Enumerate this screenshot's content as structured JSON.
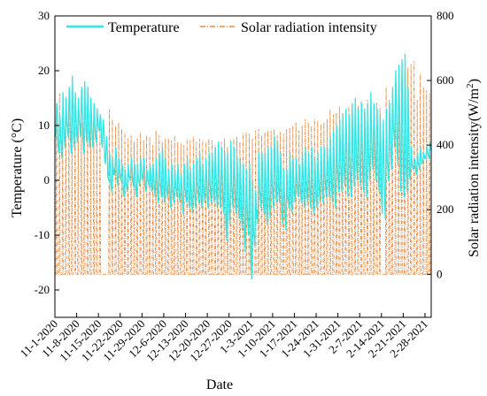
{
  "chart_data": {
    "type": "line",
    "xlabel": "Date",
    "ylabel_left": "Temperature (",
    "ylabel_left_unit": "°C)",
    "ylabel_right": "Solar radiation intensity(W/m",
    "ylabel_right_sup": "2",
    "ylabel_right_close": ")",
    "ylim_left": [
      -25,
      30
    ],
    "ylim_right": [
      -133.3,
      800
    ],
    "yticks_left": [
      -20,
      -10,
      0,
      10,
      20,
      30
    ],
    "yticks_right": [
      0,
      200,
      400,
      600,
      800
    ],
    "x_start": "2020-11-01",
    "x_end": "2021-03-02",
    "date_ticks": [
      "11-1-2020",
      "11-8-2020",
      "11-15-2020",
      "11-22-2020",
      "11-29-2020",
      "12-6-2020",
      "12-13-2020",
      "12-20-2020",
      "12-27-2020",
      "1-3-2021",
      "1-10-2021",
      "1-17-2021",
      "1-24-2021",
      "1-31-2021",
      "2-7-2021",
      "2-14-2021",
      "2-21-2021",
      "2-28-2021"
    ],
    "legend_position": "top",
    "series": [
      {
        "name": "Temperature",
        "color": "#33E6E6",
        "style": "solid",
        "axis": "left",
        "daily_min": [
          8,
          5,
          4,
          6,
          8,
          5,
          6,
          7,
          8,
          5,
          7,
          6,
          6,
          7,
          9,
          6,
          3,
          0,
          -2,
          1,
          -1,
          0,
          -3,
          -2,
          0,
          -1,
          -3,
          -1,
          0,
          -2,
          -1,
          -2,
          -3,
          -4,
          -3,
          -4,
          -3,
          -5,
          -4,
          -3,
          -4,
          -6,
          -4,
          -5,
          -6,
          -5,
          -4,
          -5,
          -4,
          -5,
          -4,
          -4,
          -5,
          -5,
          -6,
          -11,
          -8,
          -5,
          -6,
          -7,
          -9,
          -13,
          -10,
          -18,
          -12,
          -8,
          -5,
          -6,
          -8,
          -7,
          -5,
          -4,
          -4,
          -8,
          -9,
          -5,
          -6,
          -4,
          -3,
          -4,
          -5,
          -4,
          -5,
          -6,
          -5,
          -4,
          -4,
          -3,
          -3,
          -4,
          -5,
          -2,
          -2,
          -1,
          -3,
          -3,
          -1,
          0,
          -1,
          -2,
          -3,
          0,
          2,
          0,
          -2,
          -6,
          -7,
          0,
          2,
          6,
          3,
          -2,
          -3,
          -2,
          0,
          2,
          1,
          2,
          3,
          4,
          4
        ],
        "daily_max": [
          14,
          12,
          16,
          15,
          17,
          19,
          16,
          15,
          17,
          18,
          17,
          15,
          14,
          13,
          12,
          11,
          8,
          5,
          4,
          6,
          4,
          3,
          2,
          3,
          4,
          3,
          3,
          4,
          4,
          2,
          3,
          3,
          4,
          5,
          6,
          4,
          2,
          3,
          2,
          3,
          1,
          3,
          4,
          2,
          3,
          4,
          5,
          3,
          4,
          5,
          5,
          6,
          7,
          6,
          5,
          5,
          7,
          6,
          4,
          4,
          3,
          2,
          3,
          0,
          -2,
          5,
          5,
          5,
          6,
          6,
          8,
          7,
          5,
          2,
          2,
          5,
          4,
          4,
          3,
          5,
          6,
          5,
          6,
          4,
          5,
          6,
          6,
          6,
          8,
          9,
          10,
          11,
          12,
          13,
          12,
          14,
          15,
          13,
          14,
          13,
          14,
          16,
          14,
          13,
          12,
          11,
          13,
          14,
          17,
          20,
          21,
          22,
          23,
          17,
          6,
          4,
          5,
          6,
          5,
          6,
          7
        ]
      },
      {
        "name": "Solar radiation intensity",
        "color": "#E88A45",
        "style": "dash-dot",
        "axis": "right",
        "daily_peak": [
          530,
          560,
          480,
          550,
          520,
          490,
          540,
          510,
          470,
          530,
          520,
          500,
          480,
          490,
          470,
          0,
          0,
          510,
          480,
          460,
          470,
          450,
          440,
          420,
          430,
          410,
          420,
          440,
          415,
          430,
          425,
          400,
          445,
          430,
          410,
          420,
          420,
          415,
          430,
          410,
          405,
          400,
          420,
          415,
          425,
          410,
          420,
          415,
          410,
          420,
          415,
          400,
          405,
          410,
          420,
          395,
          415,
          420,
          425,
          410,
          435,
          440,
          435,
          420,
          445,
          450,
          430,
          440,
          445,
          445,
          450,
          430,
          440,
          435,
          450,
          455,
          460,
          470,
          445,
          460,
          480,
          470,
          460,
          480,
          475,
          465,
          470,
          480,
          510,
          495,
          500,
          520,
          500,
          505,
          520,
          510,
          530,
          520,
          540,
          500,
          540,
          490,
          520,
          530,
          515,
          0,
          580,
          540,
          560,
          590,
          600,
          610,
          620,
          640,
          650,
          660,
          540,
          620,
          580,
          570,
          560
        ]
      }
    ]
  }
}
